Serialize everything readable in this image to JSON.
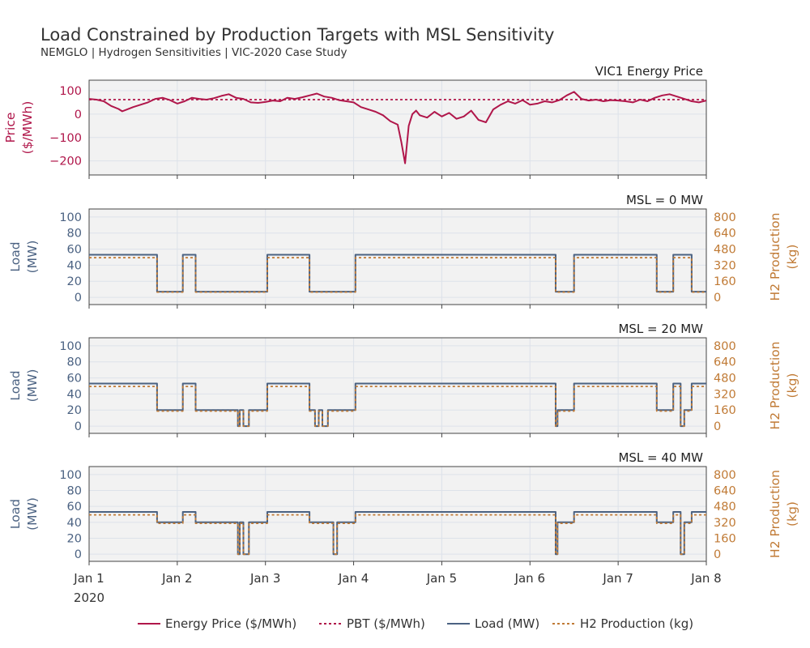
{
  "title": "Load Constrained by Production Targets with MSL Sensitivity",
  "subtitle": "NEMGLO | Hydrogen Sensitivities | VIC-2020 Case Study",
  "colors": {
    "price": "#b0164a",
    "load": "#4b6282",
    "h2": "#c07a35",
    "panel_bg": "#f2f2f2",
    "grid": "#dde2ea",
    "text": "#333333"
  },
  "x_axis": {
    "tick_labels": [
      "Jan 1",
      "Jan 2",
      "Jan 3",
      "Jan 4",
      "Jan 5",
      "Jan 6",
      "Jan 7",
      "Jan 8"
    ],
    "tick_values_hours": [
      0,
      24,
      48,
      72,
      96,
      120,
      144,
      168
    ],
    "year_label": "2020",
    "range_hours": [
      0,
      168
    ]
  },
  "legend": {
    "placement": "bottom",
    "items": [
      {
        "label": "Energy Price ($/MWh)",
        "series": "price",
        "style": "solid"
      },
      {
        "label": "PBT ($/MWh)",
        "series": "price",
        "style": "dotted"
      },
      {
        "label": "Load (MW)",
        "series": "load",
        "style": "solid"
      },
      {
        "label": "H2 Production (kg)",
        "series": "h2",
        "style": "dotted"
      }
    ]
  },
  "chart_data": [
    {
      "type": "line",
      "title": "VIC1 Energy Price",
      "ylabel": "Price ($/MWh)",
      "ylim": [
        -260,
        145
      ],
      "yticks": [
        -200,
        -100,
        0,
        100
      ],
      "ytick_labels": [
        "−200",
        "−100",
        "0",
        "100"
      ],
      "grid": true,
      "x_unit": "hours since Jan 1 00:00",
      "series": [
        {
          "name": "Energy Price ($/MWh)",
          "x": [
            0,
            2,
            4,
            6,
            8,
            9,
            10,
            12,
            14,
            16,
            18,
            20,
            22,
            24,
            26,
            28,
            30,
            32,
            34,
            36,
            38,
            40,
            42,
            44,
            46,
            48,
            50,
            52,
            54,
            56,
            58,
            60,
            62,
            64,
            66,
            68,
            70,
            72,
            74,
            76,
            78,
            80,
            82,
            84,
            85,
            86,
            87,
            88,
            89,
            90,
            92,
            94,
            96,
            98,
            100,
            102,
            104,
            106,
            108,
            110,
            112,
            114,
            116,
            118,
            120,
            122,
            124,
            126,
            128,
            130,
            132,
            134,
            136,
            138,
            140,
            142,
            144,
            146,
            148,
            150,
            152,
            154,
            156,
            158,
            160,
            162,
            164,
            166,
            168
          ],
          "y": [
            65,
            62,
            55,
            35,
            22,
            12,
            18,
            30,
            40,
            50,
            65,
            70,
            60,
            45,
            55,
            70,
            65,
            62,
            68,
            78,
            85,
            70,
            65,
            50,
            48,
            52,
            58,
            55,
            70,
            65,
            72,
            80,
            88,
            75,
            70,
            60,
            55,
            50,
            30,
            20,
            10,
            -5,
            -30,
            -45,
            -120,
            -210,
            -50,
            0,
            15,
            -5,
            -15,
            10,
            -10,
            5,
            -20,
            -10,
            15,
            -25,
            -35,
            20,
            40,
            55,
            45,
            60,
            40,
            45,
            55,
            50,
            60,
            80,
            95,
            65,
            58,
            62,
            55,
            60,
            58,
            55,
            50,
            62,
            55,
            70,
            80,
            85,
            75,
            65,
            55,
            50,
            58
          ],
          "style": "solid"
        },
        {
          "name": "PBT ($/MWh)",
          "x": [
            0,
            168
          ],
          "y": [
            62,
            62
          ],
          "style": "dotted"
        }
      ]
    },
    {
      "type": "line",
      "title": "MSL = 0 MW",
      "ylabel": "Load (MW)",
      "y2label": "H2 Production (kg)",
      "ylim": [
        -9,
        110
      ],
      "y2lim": [
        -72,
        880
      ],
      "yticks": [
        0,
        20,
        40,
        60,
        80,
        100
      ],
      "y2ticks": [
        0,
        160,
        320,
        480,
        640,
        800
      ],
      "grid": true,
      "x_unit": "hours since Jan 1 00:00",
      "series": [
        {
          "name": "Load (MW)",
          "x": [
            0,
            18.5,
            18.5,
            25.5,
            25.5,
            29,
            29,
            48.5,
            48.5,
            60,
            60,
            72.5,
            72.5,
            127,
            127,
            132,
            132,
            154.5,
            154.5,
            159,
            159,
            164,
            164,
            170
          ],
          "y": [
            53,
            53,
            7,
            7,
            53,
            53,
            7,
            7,
            53,
            53,
            7,
            7,
            53,
            53,
            7,
            7,
            53,
            53,
            7,
            7,
            53,
            53,
            7,
            7
          ],
          "style": "solid"
        },
        {
          "name": "H2 Production (kg)",
          "x": [
            0,
            18.5,
            18.5,
            25.5,
            25.5,
            29,
            29,
            48.5,
            48.5,
            60,
            60,
            72.5,
            72.5,
            127,
            127,
            132,
            132,
            154.5,
            154.5,
            159,
            159,
            164,
            164,
            170
          ],
          "y": [
            395,
            395,
            52,
            52,
            395,
            395,
            52,
            52,
            395,
            395,
            52,
            52,
            395,
            395,
            52,
            52,
            395,
            395,
            52,
            52,
            395,
            395,
            52,
            52
          ],
          "style": "dotted"
        }
      ]
    },
    {
      "type": "line",
      "title": "MSL = 20 MW",
      "ylabel": "Load (MW)",
      "y2label": "H2 Production (kg)",
      "ylim": [
        -9,
        110
      ],
      "y2lim": [
        -72,
        880
      ],
      "yticks": [
        0,
        20,
        40,
        60,
        80,
        100
      ],
      "y2ticks": [
        0,
        160,
        320,
        480,
        640,
        800
      ],
      "grid": true,
      "x_unit": "hours since Jan 1 00:00",
      "series": [
        {
          "name": "Load (MW)",
          "x": [
            0,
            18.5,
            18.5,
            25.5,
            25.5,
            29,
            29,
            40.5,
            40.5,
            41,
            41,
            42,
            42,
            43.5,
            43.5,
            48.5,
            48.5,
            60,
            60,
            61.5,
            61.5,
            62.5,
            62.5,
            63.5,
            63.5,
            65,
            65,
            68,
            68,
            72.5,
            72.5,
            127,
            127,
            127.5,
            127.5,
            128.5,
            128.5,
            132,
            132,
            154.5,
            154.5,
            159,
            159,
            161,
            161,
            162,
            162,
            164,
            164,
            170
          ],
          "y": [
            53,
            53,
            20,
            20,
            53,
            53,
            20,
            20,
            0,
            0,
            20,
            20,
            0,
            0,
            20,
            20,
            53,
            53,
            20,
            20,
            0,
            0,
            20,
            20,
            0,
            0,
            20,
            20,
            20,
            20,
            53,
            53,
            0,
            0,
            20,
            20,
            20,
            20,
            53,
            53,
            20,
            20,
            53,
            53,
            0,
            0,
            20,
            20,
            53,
            53
          ],
          "style": "solid"
        },
        {
          "name": "H2 Production (kg)",
          "x": [
            0,
            18.5,
            18.5,
            25.5,
            25.5,
            29,
            29,
            40.5,
            40.5,
            41,
            41,
            42,
            42,
            43.5,
            43.5,
            48.5,
            48.5,
            60,
            60,
            61.5,
            61.5,
            62.5,
            62.5,
            63.5,
            63.5,
            65,
            65,
            68,
            68,
            72.5,
            72.5,
            127,
            127,
            127.5,
            127.5,
            128.5,
            128.5,
            132,
            132,
            154.5,
            154.5,
            159,
            159,
            161,
            161,
            162,
            162,
            164,
            164,
            170
          ],
          "y": [
            395,
            395,
            150,
            150,
            395,
            395,
            150,
            150,
            0,
            0,
            150,
            150,
            0,
            0,
            150,
            150,
            395,
            395,
            150,
            150,
            0,
            0,
            150,
            150,
            0,
            0,
            150,
            150,
            150,
            150,
            395,
            395,
            0,
            0,
            150,
            150,
            150,
            150,
            395,
            395,
            150,
            150,
            395,
            395,
            0,
            0,
            150,
            150,
            395,
            395
          ],
          "style": "dotted"
        }
      ]
    },
    {
      "type": "line",
      "title": "MSL = 40 MW",
      "ylabel": "Load (MW)",
      "y2label": "H2 Production (kg)",
      "ylim": [
        -9,
        110
      ],
      "y2lim": [
        -72,
        880
      ],
      "yticks": [
        0,
        20,
        40,
        60,
        80,
        100
      ],
      "y2ticks": [
        0,
        160,
        320,
        480,
        640,
        800
      ],
      "grid": true,
      "x_unit": "hours since Jan 1 00:00",
      "series": [
        {
          "name": "Load (MW)",
          "x": [
            0,
            18.5,
            18.5,
            25.5,
            25.5,
            29,
            29,
            40.5,
            40.5,
            41,
            41,
            42,
            42,
            43.5,
            43.5,
            48.5,
            48.5,
            60,
            60,
            66.5,
            66.5,
            67.5,
            67.5,
            72.5,
            72.5,
            127,
            127,
            127.5,
            127.5,
            128.5,
            128.5,
            132,
            132,
            154.5,
            154.5,
            159,
            159,
            161,
            161,
            162,
            162,
            164,
            164,
            170
          ],
          "y": [
            53,
            53,
            40,
            40,
            53,
            53,
            40,
            40,
            0,
            0,
            40,
            40,
            0,
            0,
            40,
            40,
            53,
            53,
            40,
            40,
            0,
            0,
            40,
            40,
            53,
            53,
            0,
            0,
            40,
            40,
            40,
            40,
            53,
            53,
            40,
            40,
            53,
            53,
            0,
            0,
            40,
            40,
            53,
            53
          ],
          "style": "solid"
        },
        {
          "name": "H2 Production (kg)",
          "x": [
            0,
            18.5,
            18.5,
            25.5,
            25.5,
            29,
            29,
            40.5,
            40.5,
            41,
            41,
            42,
            42,
            43.5,
            43.5,
            48.5,
            48.5,
            60,
            60,
            66.5,
            66.5,
            67.5,
            67.5,
            72.5,
            72.5,
            127,
            127,
            127.5,
            127.5,
            128.5,
            128.5,
            132,
            132,
            154.5,
            154.5,
            159,
            159,
            161,
            161,
            162,
            162,
            164,
            164,
            170
          ],
          "y": [
            395,
            395,
            310,
            310,
            395,
            395,
            310,
            310,
            0,
            0,
            310,
            310,
            0,
            0,
            310,
            310,
            395,
            395,
            310,
            310,
            0,
            0,
            310,
            310,
            395,
            395,
            0,
            0,
            310,
            310,
            310,
            310,
            395,
            395,
            310,
            310,
            395,
            395,
            0,
            0,
            310,
            310,
            395,
            395
          ],
          "style": "dotted"
        }
      ]
    }
  ]
}
